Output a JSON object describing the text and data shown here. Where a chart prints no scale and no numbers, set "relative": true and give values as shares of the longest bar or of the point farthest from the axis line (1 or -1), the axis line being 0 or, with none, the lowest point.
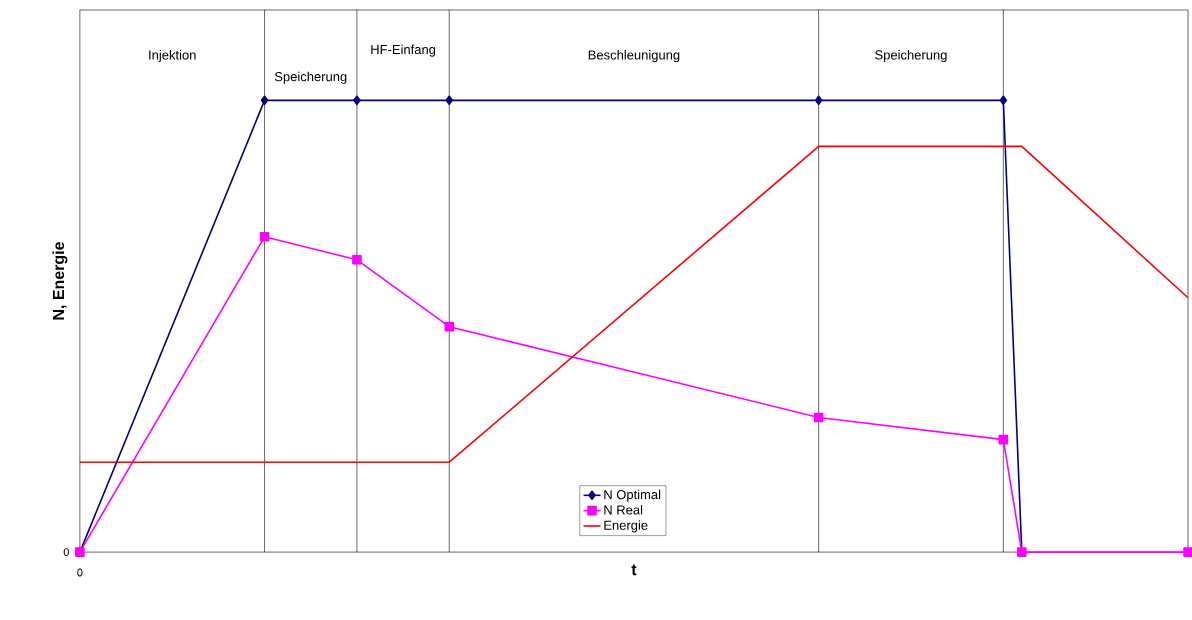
{
  "chart_data": {
    "type": "line",
    "relative": true,
    "xlabel": "t",
    "ylabel": "N, Energie",
    "legend": "bottom",
    "categories": [
      null,
      null,
      null,
      null,
      null,
      null,
      null,
      null,
      null,
      null,
      null,
      null,
      null,
      null,
      null,
      null,
      null,
      null,
      null,
      null,
      null,
      null,
      null,
      null,
      null,
      null,
      null,
      null,
      null,
      null,
      null,
      null,
      null,
      null,
      null,
      null,
      null,
      null,
      null,
      null,
      null,
      null,
      null,
      null,
      null,
      null,
      null,
      null,
      null,
      null,
      null,
      null,
      null,
      null,
      null,
      null,
      null,
      null,
      null,
      null,
      null
    ],
    "series": [
      {
        "name": "N Optimal",
        "color": "#000080",
        "marker": "diamond",
        "values": [
          0,
          null,
          null,
          null,
          null,
          null,
          null,
          null,
          null,
          null,
          1,
          null,
          null,
          null,
          null,
          1,
          null,
          null,
          null,
          null,
          1,
          null,
          null,
          null,
          null,
          null,
          null,
          null,
          null,
          null,
          null,
          null,
          null,
          null,
          null,
          null,
          null,
          null,
          null,
          null,
          1,
          null,
          null,
          null,
          null,
          null,
          null,
          null,
          null,
          null,
          1,
          0,
          null,
          null,
          null,
          null,
          null,
          null,
          null,
          null,
          null
        ]
      },
      {
        "name": "N Real",
        "color": "#ff00ff",
        "marker": "square",
        "values": [
          0,
          null,
          null,
          null,
          null,
          null,
          null,
          null,
          null,
          null,
          0.698,
          null,
          null,
          null,
          null,
          0.647,
          null,
          null,
          null,
          null,
          0.499,
          null,
          null,
          null,
          null,
          null,
          null,
          null,
          null,
          null,
          null,
          null,
          null,
          null,
          null,
          null,
          null,
          null,
          null,
          null,
          0.298,
          null,
          null,
          null,
          null,
          null,
          null,
          null,
          null,
          null,
          0.249,
          0,
          null,
          null,
          null,
          null,
          null,
          null,
          null,
          null,
          0
        ]
      },
      {
        "name": "Energie",
        "color": "#ff0000",
        "marker": "none",
        "values": [
          0.199,
          null,
          null,
          null,
          null,
          null,
          null,
          null,
          null,
          null,
          null,
          null,
          null,
          null,
          null,
          null,
          null,
          null,
          null,
          null,
          0.199,
          null,
          null,
          null,
          null,
          null,
          null,
          null,
          null,
          null,
          null,
          null,
          null,
          null,
          null,
          null,
          null,
          null,
          null,
          null,
          0.898,
          null,
          null,
          null,
          null,
          null,
          null,
          null,
          null,
          null,
          null,
          0.898,
          null,
          null,
          null,
          null,
          null,
          null,
          null,
          null,
          0.563
        ]
      }
    ],
    "grid": "x",
    "annotations": [
      "0",
      "0",
      "Injektion",
      "Speicherung",
      "HF-Einfang",
      "Beschleunigung",
      "Speicherung"
    ]
  }
}
